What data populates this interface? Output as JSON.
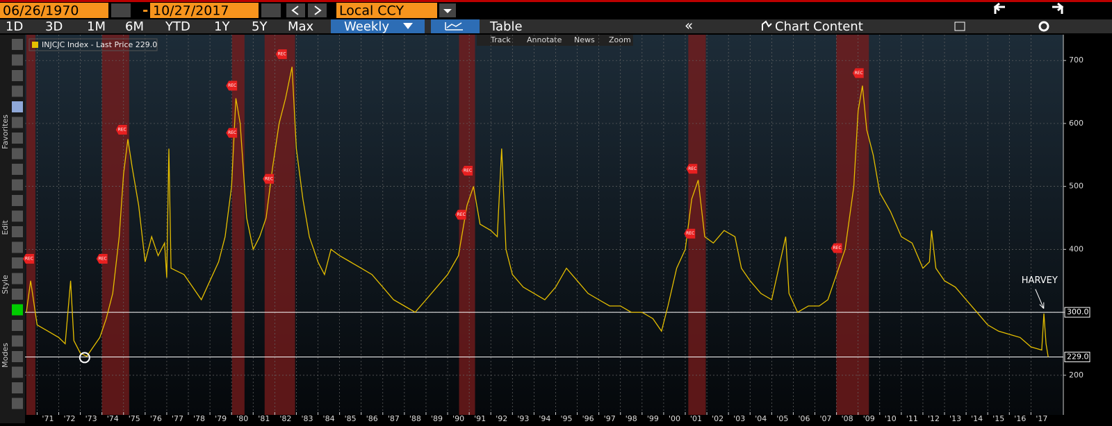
{
  "toolbar": {
    "start_date": "06/26/1970",
    "separator": "-",
    "end_date": "10/27/2017",
    "currency": "Local CCY",
    "tabs": [
      "1D",
      "3D",
      "1M",
      "6M",
      "YTD",
      "1Y",
      "5Y",
      "Max"
    ],
    "frequency": "Weekly",
    "table": "Table",
    "collapse": "«",
    "chart_content": "Chart Content",
    "tools": [
      "Track",
      "Annotate",
      "News",
      "Zoom"
    ]
  },
  "side_labels": [
    "Favorites",
    "Edit",
    "Style",
    "Modes"
  ],
  "chart_data": {
    "type": "line",
    "legend": "INJCJC Index - Last Price 229.0",
    "series": [
      {
        "name": "INJCJC Index",
        "color": "#e6bf00",
        "x": [
          1970.5,
          1970.7,
          1971.0,
          1971.5,
          1972.0,
          1972.3,
          1972.55,
          1972.7,
          1973.0,
          1973.3,
          1973.6,
          1973.9,
          1974.2,
          1974.5,
          1974.8,
          1975.0,
          1975.2,
          1975.4,
          1975.7,
          1976.0,
          1976.3,
          1976.6,
          1976.9,
          1977.0,
          1977.1,
          1977.2,
          1977.8,
          1978.2,
          1978.6,
          1979.0,
          1979.4,
          1979.7,
          1980.0,
          1980.2,
          1980.4,
          1980.7,
          1981.0,
          1981.3,
          1981.6,
          1981.9,
          1982.2,
          1982.5,
          1982.8,
          1983.0,
          1983.3,
          1983.6,
          1984.0,
          1984.3,
          1984.6,
          1985.0,
          1985.5,
          1986.0,
          1986.5,
          1987.0,
          1987.5,
          1988.0,
          1988.5,
          1989.0,
          1989.5,
          1990.0,
          1990.5,
          1990.9,
          1991.2,
          1991.5,
          1992.0,
          1992.3,
          1992.5,
          1992.7,
          1993.0,
          1993.5,
          1994.0,
          1994.5,
          1995.0,
          1995.5,
          1996.0,
          1996.5,
          1997.0,
          1997.5,
          1998.0,
          1998.5,
          1999.0,
          1999.5,
          1999.9,
          2000.2,
          2000.6,
          2001.0,
          2001.3,
          2001.6,
          2001.9,
          2002.3,
          2002.8,
          2003.3,
          2003.6,
          2004.0,
          2004.5,
          2005.0,
          2005.65,
          2005.8,
          2006.2,
          2006.7,
          2007.2,
          2007.6,
          2008.0,
          2008.4,
          2008.8,
          2009.0,
          2009.2,
          2009.4,
          2009.7,
          2010.0,
          2010.5,
          2011.0,
          2011.5,
          2012.0,
          2012.3,
          2012.4,
          2012.6,
          2013.0,
          2013.5,
          2014.0,
          2014.5,
          2015.0,
          2015.5,
          2016.0,
          2016.5,
          2017.0,
          2017.5,
          2017.6,
          2017.7,
          2017.8
        ],
        "values": [
          300,
          350,
          280,
          270,
          260,
          250,
          350,
          255,
          235,
          230,
          245,
          260,
          290,
          330,
          420,
          520,
          575,
          530,
          470,
          380,
          420,
          390,
          410,
          355,
          560,
          370,
          360,
          340,
          320,
          350,
          380,
          420,
          500,
          640,
          600,
          450,
          400,
          420,
          450,
          530,
          600,
          640,
          690,
          560,
          480,
          420,
          380,
          360,
          400,
          390,
          380,
          370,
          360,
          340,
          320,
          310,
          300,
          320,
          340,
          360,
          390,
          470,
          500,
          440,
          430,
          420,
          560,
          400,
          360,
          340,
          330,
          320,
          340,
          370,
          350,
          330,
          320,
          310,
          310,
          300,
          300,
          290,
          270,
          310,
          370,
          400,
          480,
          510,
          420,
          410,
          430,
          420,
          370,
          350,
          330,
          320,
          420,
          330,
          300,
          310,
          310,
          320,
          360,
          400,
          500,
          620,
          660,
          590,
          550,
          490,
          460,
          420,
          410,
          370,
          380,
          430,
          370,
          350,
          340,
          320,
          300,
          280,
          270,
          265,
          260,
          245,
          240,
          298,
          250,
          229
        ]
      }
    ],
    "recessions": [
      [
        1970.5,
        1970.92
      ],
      [
        1974.0,
        1975.26
      ],
      [
        1980.02,
        1980.6
      ],
      [
        1981.53,
        1982.94
      ],
      [
        1990.53,
        1991.27
      ],
      [
        2001.14,
        2001.95
      ],
      [
        2007.99,
        2009.5
      ]
    ],
    "rec_label": "REC",
    "rec_markers": {
      "x": [
        1970.6,
        1974.0,
        1974.9,
        1980.0,
        1980.0,
        1981.7,
        1982.3,
        1990.6,
        1990.9,
        2001.2,
        2001.3,
        2008.0,
        2009.0
      ],
      "y": [
        385,
        385,
        590,
        660,
        585,
        512,
        710,
        455,
        525,
        425,
        528,
        402,
        680
      ]
    },
    "hlines": [
      {
        "value": 300,
        "label": "300.0"
      },
      {
        "value": 229,
        "label": "229.0"
      }
    ],
    "annotation": {
      "text": "HARVEY",
      "x": 2017.4,
      "y": 350
    },
    "circle": {
      "x": 1973.2,
      "y": 228
    },
    "xlim": [
      1970.44,
      2018.5
    ],
    "ylim": [
      137,
      741
    ],
    "yticks": [
      200,
      300,
      400,
      500,
      600,
      700
    ],
    "xticks": [
      {
        "value": 1971,
        "label": "'71"
      },
      {
        "value": 1972,
        "label": "'72"
      },
      {
        "value": 1973,
        "label": "'73"
      },
      {
        "value": 1974,
        "label": "'74"
      },
      {
        "value": 1975,
        "label": "'75"
      },
      {
        "value": 1976,
        "label": "'76"
      },
      {
        "value": 1977,
        "label": "'77"
      },
      {
        "value": 1978,
        "label": "'78"
      },
      {
        "value": 1979,
        "label": "'79"
      },
      {
        "value": 1980,
        "label": "'80"
      },
      {
        "value": 1981,
        "label": "'81"
      },
      {
        "value": 1982,
        "label": "'82"
      },
      {
        "value": 1983,
        "label": "'83"
      },
      {
        "value": 1984,
        "label": "'84"
      },
      {
        "value": 1985,
        "label": "'85"
      },
      {
        "value": 1986,
        "label": "'86"
      },
      {
        "value": 1987,
        "label": "'87"
      },
      {
        "value": 1988,
        "label": "'88"
      },
      {
        "value": 1989,
        "label": "'89"
      },
      {
        "value": 1990,
        "label": "'90"
      },
      {
        "value": 1991,
        "label": "'91"
      },
      {
        "value": 1992,
        "label": "'92"
      },
      {
        "value": 1993,
        "label": "'93"
      },
      {
        "value": 1994,
        "label": "'94"
      },
      {
        "value": 1995,
        "label": "'95"
      },
      {
        "value": 1996,
        "label": "'96"
      },
      {
        "value": 1997,
        "label": "'97"
      },
      {
        "value": 1998,
        "label": "'98"
      },
      {
        "value": 1999,
        "label": "'99"
      },
      {
        "value": 2000,
        "label": "'00"
      },
      {
        "value": 2001,
        "label": "'01"
      },
      {
        "value": 2002,
        "label": "'02"
      },
      {
        "value": 2003,
        "label": "'03"
      },
      {
        "value": 2004,
        "label": "'04"
      },
      {
        "value": 2005,
        "label": "'05"
      },
      {
        "value": 2006,
        "label": "'06"
      },
      {
        "value": 2007,
        "label": "'07"
      },
      {
        "value": 2008,
        "label": "'08"
      },
      {
        "value": 2009,
        "label": "'09"
      },
      {
        "value": 2010,
        "label": "'10"
      },
      {
        "value": 2011,
        "label": "'11"
      },
      {
        "value": 2012,
        "label": "'12"
      },
      {
        "value": 2013,
        "label": "'13"
      },
      {
        "value": 2014,
        "label": "'14"
      },
      {
        "value": 2015,
        "label": "'15"
      },
      {
        "value": 2016,
        "label": "'16"
      },
      {
        "value": 2017,
        "label": "'17"
      }
    ],
    "grid": true
  }
}
